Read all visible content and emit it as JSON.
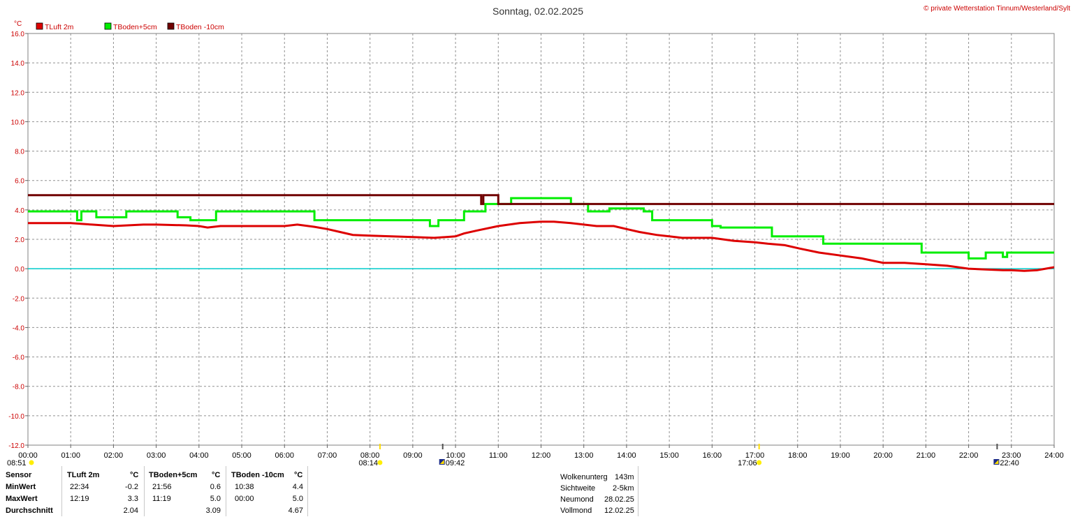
{
  "header": {
    "title": "Sonntag, 02.02.2025",
    "copyright": "© private Wetterstation Tinnum/Westerland/Sylt",
    "unit": "°C"
  },
  "legend": [
    {
      "label": "TLuft 2m",
      "color": "#dd0000"
    },
    {
      "label": "TBoden+5cm",
      "color": "#00ee00"
    },
    {
      "label": "TBoden -10cm",
      "color": "#700000"
    }
  ],
  "sun_moon_marks": [
    {
      "label": "08:51",
      "time": "08:51",
      "type": "sun"
    },
    {
      "label": "08:14",
      "time": "08:14",
      "type": "sun"
    },
    {
      "label": "09:42",
      "time": "09:42",
      "type": "moon"
    },
    {
      "label": "17:06",
      "time": "17:06",
      "type": "sun"
    },
    {
      "label": "22:40",
      "time": "22:40",
      "type": "moon"
    }
  ],
  "chart_data": {
    "type": "line",
    "ylim": [
      -12,
      16
    ],
    "xlim": [
      0,
      24
    ],
    "yticks": [
      "16.0",
      "14.0",
      "12.0",
      "10.0",
      "8.0",
      "6.0",
      "4.0",
      "2.0",
      "0.0",
      "-2.0",
      "-4.0",
      "-6.0",
      "-8.0",
      "-10.0",
      "-12.0"
    ],
    "xticks": [
      "00:00",
      "01:00",
      "02:00",
      "03:00",
      "04:00",
      "05:00",
      "06:00",
      "07:00",
      "08:00",
      "09:00",
      "10:00",
      "11:00",
      "12:00",
      "13:00",
      "14:00",
      "15:00",
      "16:00",
      "17:00",
      "18:00",
      "19:00",
      "20:00",
      "21:00",
      "22:00",
      "23:00",
      "24:00"
    ],
    "grid": true,
    "legend_position": "top-left",
    "zero_line_color": "#00cccc",
    "series": [
      {
        "name": "TLuft 2m",
        "color": "#dd0000",
        "x": [
          0,
          1,
          1.5,
          2,
          2.7,
          3,
          3.7,
          4,
          4.2,
          4.5,
          5,
          6,
          6.3,
          6.7,
          7,
          7.3,
          7.6,
          8,
          8.5,
          9,
          9.5,
          10,
          10.2,
          10.5,
          11,
          11.5,
          12,
          12.3,
          12.7,
          13,
          13.3,
          13.7,
          14,
          14.3,
          14.7,
          15,
          15.3,
          16,
          16.5,
          17,
          17.3,
          17.7,
          18,
          18.5,
          19,
          19.5,
          20,
          20.5,
          21,
          21.5,
          22,
          22.4,
          22.8,
          23,
          23.3,
          23.6,
          23.8,
          24
        ],
        "y": [
          3.1,
          3.1,
          3.0,
          2.9,
          3.0,
          3.0,
          2.95,
          2.9,
          2.8,
          2.9,
          2.9,
          2.9,
          3.0,
          2.85,
          2.7,
          2.5,
          2.3,
          2.25,
          2.2,
          2.15,
          2.1,
          2.2,
          2.4,
          2.6,
          2.9,
          3.1,
          3.2,
          3.2,
          3.1,
          3.0,
          2.9,
          2.9,
          2.7,
          2.5,
          2.3,
          2.2,
          2.1,
          2.1,
          1.9,
          1.8,
          1.7,
          1.6,
          1.4,
          1.1,
          0.9,
          0.7,
          0.4,
          0.4,
          0.3,
          0.2,
          0.0,
          -0.05,
          -0.1,
          -0.1,
          -0.15,
          -0.1,
          0.0,
          0.1
        ]
      },
      {
        "name": "TBoden+5cm",
        "color": "#00ee00",
        "x": [
          0,
          1.15,
          1.15,
          1.25,
          1.25,
          1.6,
          1.6,
          2.3,
          2.3,
          3.5,
          3.5,
          3.8,
          3.8,
          4.4,
          4.4,
          6.7,
          6.7,
          9.4,
          9.4,
          9.6,
          9.6,
          10.2,
          10.2,
          10.7,
          10.7,
          11.3,
          11.3,
          12.7,
          12.7,
          13.1,
          13.1,
          13.6,
          13.6,
          14.4,
          14.4,
          14.6,
          14.6,
          16.0,
          16.0,
          16.2,
          16.2,
          17.4,
          17.4,
          18.6,
          18.6,
          20.9,
          20.9,
          22.0,
          22.0,
          22.4,
          22.4,
          22.8,
          22.8,
          22.9,
          22.9,
          24
        ],
        "y": [
          3.9,
          3.9,
          3.3,
          3.3,
          3.9,
          3.9,
          3.5,
          3.5,
          3.9,
          3.9,
          3.5,
          3.5,
          3.3,
          3.3,
          3.9,
          3.9,
          3.3,
          3.3,
          2.9,
          2.9,
          3.3,
          3.3,
          3.9,
          3.9,
          4.4,
          4.4,
          4.8,
          4.8,
          4.4,
          4.4,
          3.9,
          3.9,
          4.1,
          4.1,
          3.9,
          3.9,
          3.3,
          3.3,
          2.9,
          2.9,
          2.8,
          2.8,
          2.2,
          2.2,
          1.7,
          1.7,
          1.1,
          1.1,
          0.7,
          0.7,
          1.1,
          1.1,
          0.8,
          0.8,
          1.1,
          1.1
        ]
      },
      {
        "name": "TBoden -10cm",
        "color": "#700000",
        "x": [
          0,
          10.6,
          10.6,
          10.65,
          10.65,
          11.0,
          11.0,
          24
        ],
        "y": [
          5.0,
          5.0,
          4.4,
          4.4,
          5.0,
          5.0,
          4.4,
          4.4
        ]
      }
    ]
  },
  "stats_table": {
    "headers": [
      "Sensor",
      "TLuft 2m",
      "°C",
      "TBoden+5cm",
      "°C",
      "TBoden -10cm",
      "°C"
    ],
    "rows": [
      {
        "label": "MinWert",
        "c1_time": "22:34",
        "c1_val": "-0.2",
        "c2_time": "21:56",
        "c2_val": "0.6",
        "c3_time": "10:38",
        "c3_val": "4.4"
      },
      {
        "label": "MaxWert",
        "c1_time": "12:19",
        "c1_val": "3.3",
        "c2_time": "11:19",
        "c2_val": "5.0",
        "c3_time": "00:00",
        "c3_val": "5.0"
      },
      {
        "label": "Durchschnitt",
        "c1_time": "",
        "c1_val": "2.04",
        "c2_time": "",
        "c2_val": "3.09",
        "c3_time": "",
        "c3_val": "4.67"
      }
    ]
  },
  "info_table": [
    {
      "label": "Wolkenunterg",
      "value": "143m"
    },
    {
      "label": "Sichtweite",
      "value": "2-5km"
    },
    {
      "label": "Neumond",
      "value": "28.02.25"
    },
    {
      "label": "Vollmond",
      "value": "12.02.25"
    }
  ]
}
